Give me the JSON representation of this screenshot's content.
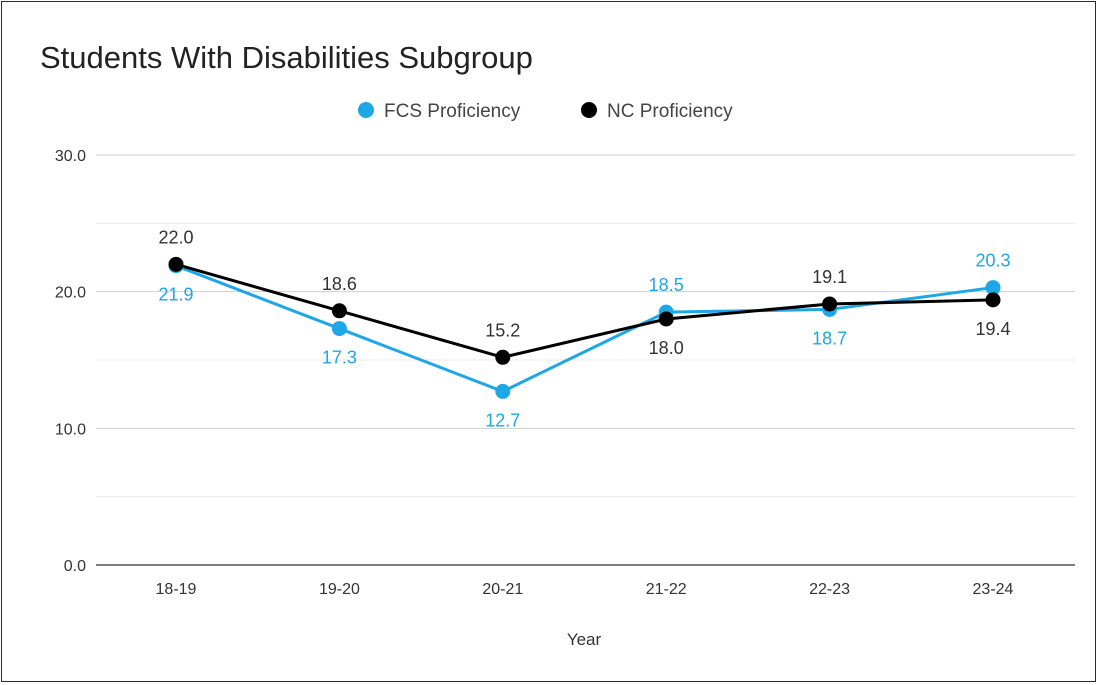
{
  "chart_data": {
    "type": "line",
    "title": "Students With Disabilities Subgroup",
    "xlabel": "Year",
    "ylabel": "",
    "categories": [
      "18-19",
      "19-20",
      "20-21",
      "21-22",
      "22-23",
      "23-24"
    ],
    "ylim": [
      0,
      30
    ],
    "yticks": [
      "0.0",
      "10.0",
      "20.0",
      "30.0"
    ],
    "grid": true,
    "legend_position": "top",
    "series": [
      {
        "name": "FCS Proficiency",
        "color": "#1ea7e6",
        "values": [
          21.9,
          17.3,
          12.7,
          18.5,
          18.7,
          20.3
        ],
        "labels": [
          "21.9",
          "17.3",
          "12.7",
          "18.5",
          "18.7",
          "20.3"
        ]
      },
      {
        "name": "NC Proficiency",
        "color": "#000000",
        "values": [
          22.0,
          18.6,
          15.2,
          18.0,
          19.1,
          19.4
        ],
        "labels": [
          "22.0",
          "18.6",
          "15.2",
          "18.0",
          "19.1",
          "19.4"
        ]
      }
    ]
  }
}
